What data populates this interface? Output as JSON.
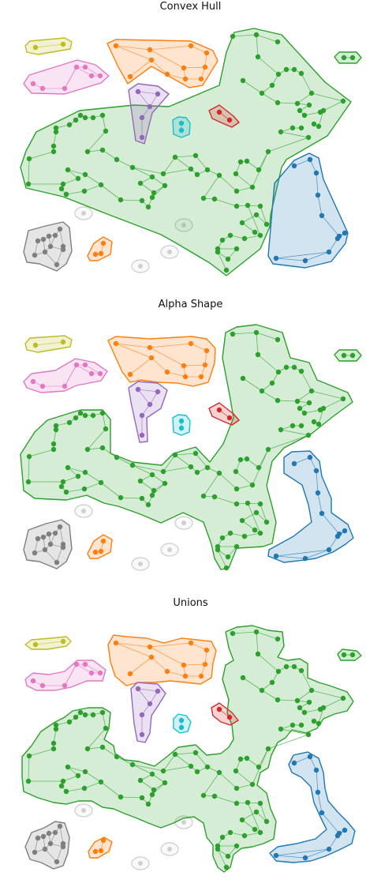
{
  "panels": [
    {
      "title": "Convex Hull",
      "style": "convex"
    },
    {
      "title": "Alpha Shape",
      "style": "alpha"
    },
    {
      "title": "Unions",
      "style": "union"
    }
  ],
  "groups": [
    {
      "name": "green-cluster",
      "color": "#2ca02c",
      "fill": "#2ca02c",
      "stroke": "#2ca02c"
    },
    {
      "name": "blue-cluster",
      "color": "#1f77b4",
      "fill": "#1f77b4",
      "stroke": "#1f77b4"
    },
    {
      "name": "orange-cluster",
      "color": "#ff7f0e",
      "fill": "#ff7f0e",
      "stroke": "#ff7f0e"
    },
    {
      "name": "pink-cluster",
      "color": "#e377c2",
      "fill": "#e377c2",
      "stroke": "#e377c2"
    },
    {
      "name": "olive-cluster",
      "color": "#bcbd22",
      "fill": "#bcbd22",
      "stroke": "#bcbd22"
    },
    {
      "name": "purple-cluster",
      "color": "#9467bd",
      "fill": "#9467bd",
      "stroke": "#9467bd"
    },
    {
      "name": "cyan-cluster",
      "color": "#17becf",
      "fill": "#17becf",
      "stroke": "#17becf"
    },
    {
      "name": "red-cluster",
      "color": "#d62728",
      "fill": "#d62728",
      "stroke": "#d62728"
    },
    {
      "name": "gray-cluster",
      "color": "#7f7f7f",
      "fill": "#7f7f7f",
      "stroke": "#7f7f7f"
    },
    {
      "name": "small-orange-cluster",
      "color": "#ff7f0e",
      "fill": "#ff7f0e",
      "stroke": "#ff7f0e"
    },
    {
      "name": "small-green-cluster",
      "color": "#2ca02c",
      "fill": "#2ca02c",
      "stroke": "#2ca02c"
    },
    {
      "name": "isolated-node",
      "color": "#d0d0d0",
      "fill": "#e8e8e8",
      "stroke": "#cccccc"
    }
  ]
}
